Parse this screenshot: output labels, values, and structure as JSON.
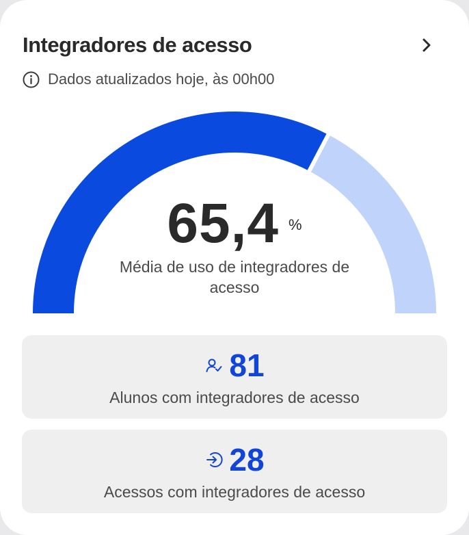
{
  "card": {
    "title": "Integradores de acesso",
    "subtitle": "Dados atualizados hoje, às 00h00",
    "info_icon": "info-circle-icon",
    "chevron_icon": "chevron-right-icon"
  },
  "gauge": {
    "value": "65,4",
    "unit": "%",
    "label": "Média de uso de integradores de acesso",
    "fraction": 0.654,
    "filled_color": "#0a4ade",
    "remaining_color": "#bfd3fb"
  },
  "stats": [
    {
      "icon": "user-check-icon",
      "value": "81",
      "label": "Alunos com integradores de acesso"
    },
    {
      "icon": "login-arrow-icon",
      "value": "28",
      "label": "Acessos com integradores de acesso"
    }
  ],
  "colors": {
    "accent": "#1145d8",
    "stat_bg": "#efefef"
  }
}
